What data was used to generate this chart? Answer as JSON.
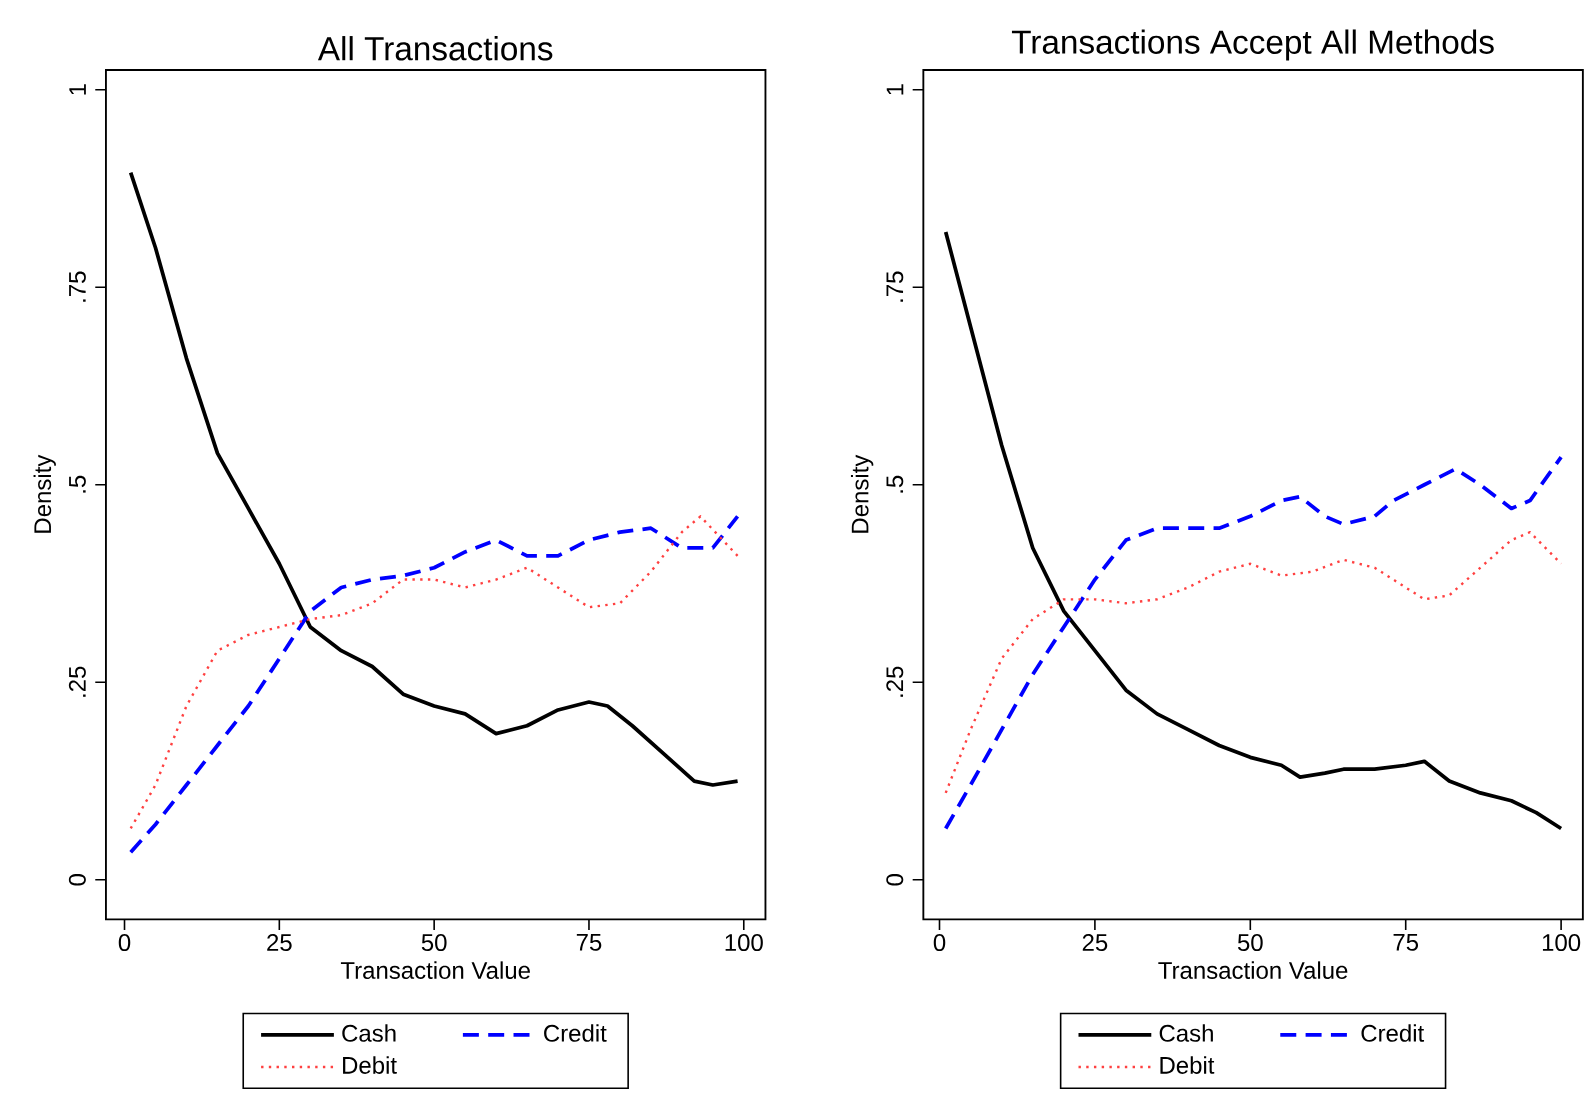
{
  "chart_data": [
    {
      "type": "line",
      "title": "All Transactions",
      "xlabel": "Transaction Value",
      "ylabel": "Density",
      "xlim": [
        -3,
        103.5
      ],
      "ylim": [
        -0.05,
        1.025
      ],
      "xticks": [
        0,
        25,
        50,
        75,
        100
      ],
      "yticks": [
        0,
        {
          "value": 0.25,
          "label": ".25"
        },
        {
          "value": 0.5,
          "label": ".5"
        },
        {
          "value": 0.75,
          "label": ".75"
        },
        1
      ],
      "legend": "bottom",
      "series": [
        {
          "name": "Cash",
          "color": "#000000",
          "line_style": "solid",
          "x": [
            1,
            5,
            10,
            15,
            20,
            25,
            30,
            35,
            40,
            45,
            50,
            55,
            60,
            65,
            70,
            75,
            78,
            82,
            87,
            92,
            95,
            99
          ],
          "values": [
            0.895,
            0.8,
            0.66,
            0.54,
            0.47,
            0.4,
            0.32,
            0.29,
            0.27,
            0.235,
            0.22,
            0.21,
            0.185,
            0.195,
            0.215,
            0.225,
            0.22,
            0.195,
            0.16,
            0.125,
            0.12,
            0.125
          ]
        },
        {
          "name": "Credit",
          "color": "#0000ff",
          "line_style": "dashed",
          "x": [
            1,
            5,
            10,
            15,
            20,
            25,
            30,
            35,
            40,
            45,
            50,
            55,
            60,
            65,
            70,
            75,
            80,
            85,
            90,
            95,
            99
          ],
          "values": [
            0.035,
            0.07,
            0.12,
            0.17,
            0.22,
            0.28,
            0.34,
            0.37,
            0.38,
            0.385,
            0.395,
            0.415,
            0.43,
            0.41,
            0.41,
            0.43,
            0.44,
            0.445,
            0.42,
            0.42,
            0.46
          ]
        },
        {
          "name": "Debit",
          "color": "#ff4040",
          "line_style": "dotted",
          "x": [
            1,
            5,
            10,
            15,
            20,
            25,
            30,
            35,
            40,
            45,
            50,
            55,
            60,
            65,
            70,
            75,
            80,
            85,
            90,
            93,
            99
          ],
          "values": [
            0.065,
            0.12,
            0.22,
            0.29,
            0.31,
            0.32,
            0.33,
            0.335,
            0.35,
            0.38,
            0.38,
            0.37,
            0.38,
            0.395,
            0.37,
            0.345,
            0.35,
            0.39,
            0.44,
            0.46,
            0.41
          ]
        }
      ]
    },
    {
      "type": "line",
      "title": "Transactions Accept All Methods",
      "xlabel": "Transaction Value",
      "ylabel": "Density",
      "xlim": [
        -2.6,
        103.5
      ],
      "ylim": [
        -0.05,
        1.025
      ],
      "xticks": [
        0,
        25,
        50,
        75,
        100
      ],
      "yticks": [
        0,
        {
          "value": 0.25,
          "label": ".25"
        },
        {
          "value": 0.5,
          "label": ".5"
        },
        {
          "value": 0.75,
          "label": ".75"
        },
        1
      ],
      "legend": "bottom",
      "series": [
        {
          "name": "Cash",
          "color": "#000000",
          "line_style": "solid",
          "x": [
            1,
            5,
            10,
            15,
            20,
            25,
            30,
            35,
            40,
            45,
            50,
            55,
            58,
            62,
            65,
            70,
            75,
            78,
            82,
            87,
            92,
            96,
            100
          ],
          "values": [
            0.82,
            0.7,
            0.55,
            0.42,
            0.34,
            0.29,
            0.24,
            0.21,
            0.19,
            0.17,
            0.155,
            0.145,
            0.13,
            0.135,
            0.14,
            0.14,
            0.145,
            0.15,
            0.125,
            0.11,
            0.1,
            0.085,
            0.065
          ]
        },
        {
          "name": "Credit",
          "color": "#0000ff",
          "line_style": "dashed",
          "x": [
            1,
            5,
            10,
            15,
            20,
            25,
            30,
            35,
            40,
            45,
            50,
            55,
            58,
            62,
            65,
            70,
            73,
            78,
            83,
            87,
            92,
            95,
            100
          ],
          "values": [
            0.065,
            0.12,
            0.19,
            0.26,
            0.32,
            0.38,
            0.43,
            0.445,
            0.445,
            0.445,
            0.46,
            0.48,
            0.485,
            0.46,
            0.45,
            0.46,
            0.48,
            0.5,
            0.52,
            0.5,
            0.47,
            0.48,
            0.535
          ]
        },
        {
          "name": "Debit",
          "color": "#ff4040",
          "line_style": "dotted",
          "x": [
            1,
            5,
            10,
            15,
            20,
            25,
            30,
            35,
            40,
            45,
            50,
            55,
            60,
            65,
            70,
            75,
            78,
            82,
            87,
            92,
            95,
            100
          ],
          "values": [
            0.11,
            0.19,
            0.28,
            0.33,
            0.355,
            0.355,
            0.35,
            0.355,
            0.37,
            0.39,
            0.4,
            0.385,
            0.39,
            0.405,
            0.395,
            0.37,
            0.355,
            0.36,
            0.395,
            0.43,
            0.44,
            0.4
          ]
        }
      ]
    }
  ]
}
